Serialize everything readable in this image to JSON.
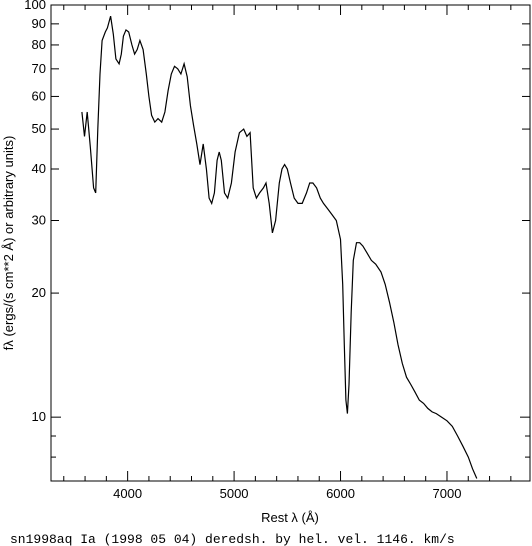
{
  "chart_data": {
    "type": "line",
    "xlabel": "Rest λ (Å)",
    "ylabel": "fλ (ergs/(s cm**2 Å) or arbitrary units)",
    "caption": "sn1998aq Ia (1998 05 04) deredsh. by hel. vel.  1146. km/s",
    "xlim": [
      3280,
      7780
    ],
    "ylim": [
      7,
      100
    ],
    "y_scale": "log",
    "x_ticks": [
      4000,
      5000,
      6000,
      7000
    ],
    "x_tick_labels": [
      "4000",
      "5000",
      "6000",
      "7000"
    ],
    "y_ticks": [
      10,
      20,
      30,
      40,
      50,
      60,
      70,
      80,
      90,
      100
    ],
    "y_tick_labels": [
      "10",
      "20",
      "30",
      "40",
      "50",
      "60",
      "70",
      "80",
      "90",
      "100"
    ],
    "grid": false,
    "series": [
      {
        "color": "#000000",
        "x": [
          3570,
          3595,
          3620,
          3650,
          3680,
          3700,
          3720,
          3740,
          3760,
          3790,
          3810,
          3840,
          3865,
          3890,
          3920,
          3940,
          3960,
          3985,
          4010,
          4040,
          4065,
          4090,
          4115,
          4145,
          4175,
          4200,
          4225,
          4255,
          4285,
          4320,
          4350,
          4380,
          4410,
          4440,
          4470,
          4500,
          4530,
          4560,
          4590,
          4620,
          4650,
          4680,
          4710,
          4740,
          4765,
          4790,
          4815,
          4840,
          4860,
          4880,
          4910,
          4940,
          4975,
          5010,
          5050,
          5090,
          5120,
          5150,
          5180,
          5210,
          5240,
          5275,
          5300,
          5330,
          5360,
          5390,
          5425,
          5450,
          5475,
          5500,
          5530,
          5565,
          5600,
          5640,
          5680,
          5710,
          5740,
          5775,
          5810,
          5840,
          5880,
          5920,
          5960,
          6000,
          6020,
          6035,
          6050,
          6065,
          6080,
          6100,
          6120,
          6150,
          6180,
          6210,
          6250,
          6290,
          6330,
          6380,
          6420,
          6460,
          6500,
          6540,
          6580,
          6620,
          6660,
          6700,
          6740,
          6780,
          6820,
          6860,
          6900,
          6950,
          7000,
          7050,
          7100,
          7150,
          7200,
          7240,
          7260,
          7280
        ],
        "y": [
          55,
          48,
          55,
          45,
          36,
          35,
          50,
          68,
          82,
          86,
          88,
          94,
          85,
          74,
          72,
          76,
          84,
          87,
          86,
          80,
          76,
          78,
          82,
          78,
          68,
          60,
          54,
          52,
          53,
          52,
          55,
          62,
          68,
          71,
          70,
          68,
          72,
          67,
          57,
          51,
          46,
          41,
          46,
          40,
          34,
          33,
          35,
          42,
          44,
          42,
          35,
          34,
          37,
          44,
          49,
          50,
          48,
          49,
          36,
          34,
          35,
          36,
          37,
          33,
          28,
          30,
          37,
          40,
          41,
          40,
          37,
          34,
          33,
          33,
          35,
          37,
          37,
          36,
          34,
          33,
          32,
          31,
          30,
          27,
          21,
          15,
          11,
          10.2,
          12,
          18,
          24,
          26.5,
          26.5,
          26,
          25,
          24,
          23.5,
          22.5,
          21,
          19,
          17,
          15,
          13.5,
          12.5,
          12,
          11.5,
          11,
          10.8,
          10.5,
          10.3,
          10.2,
          10,
          9.8,
          9.5,
          9,
          8.5,
          8,
          7.5,
          7.3,
          7.1
        ]
      }
    ]
  }
}
